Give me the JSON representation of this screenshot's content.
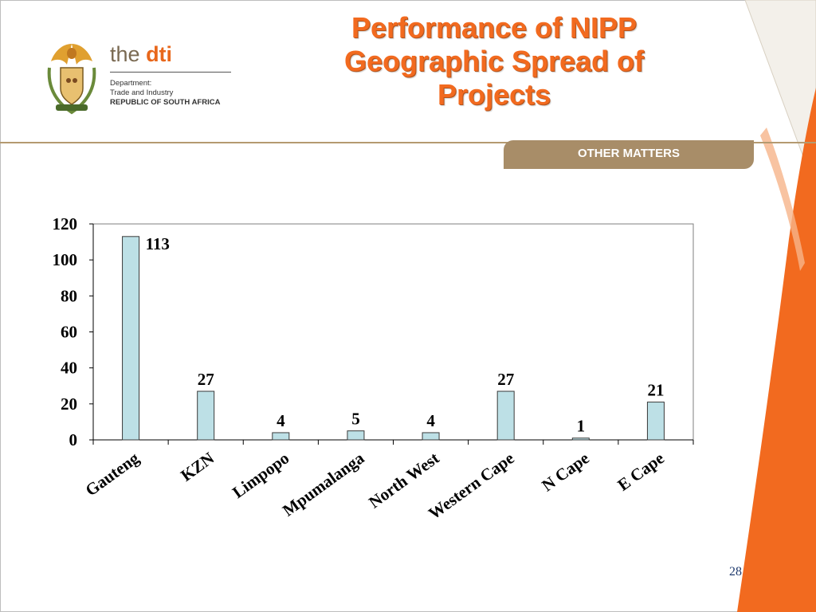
{
  "slide": {
    "title_line1": "Performance of NIPP",
    "title_line2": "Geographic Spread of",
    "title_line3": "Projects",
    "section_tab": "OTHER MATTERS",
    "page_number": "28"
  },
  "logo": {
    "brand_the": "the",
    "brand_dti": "dti",
    "line1": "Department:",
    "line2": "Trade and Industry",
    "line3": "REPUBLIC OF SOUTH AFRICA"
  },
  "colors": {
    "title": "#f26a1f",
    "accent_orange": "#f26a1f",
    "tab_bg": "#a88d68",
    "bar_fill": "#bde0e6",
    "bar_stroke": "#3a3a3a",
    "page_number": "#1f3a6e"
  },
  "chart_data": {
    "type": "bar",
    "categories": [
      "Gauteng",
      "KZN",
      "Limpopo",
      "Mpumalanga",
      "North West",
      "Western Cape",
      "N Cape",
      "E Cape"
    ],
    "values": [
      113,
      27,
      4,
      5,
      4,
      27,
      1,
      21
    ],
    "data_labels": [
      "113",
      "27",
      "4",
      "5",
      "4",
      "27",
      "1",
      "21"
    ],
    "ylim": [
      0,
      120
    ],
    "yticks": [
      0,
      20,
      40,
      60,
      80,
      100,
      120
    ],
    "grid": false,
    "legend": "none",
    "title": "",
    "xlabel": "",
    "ylabel": ""
  }
}
